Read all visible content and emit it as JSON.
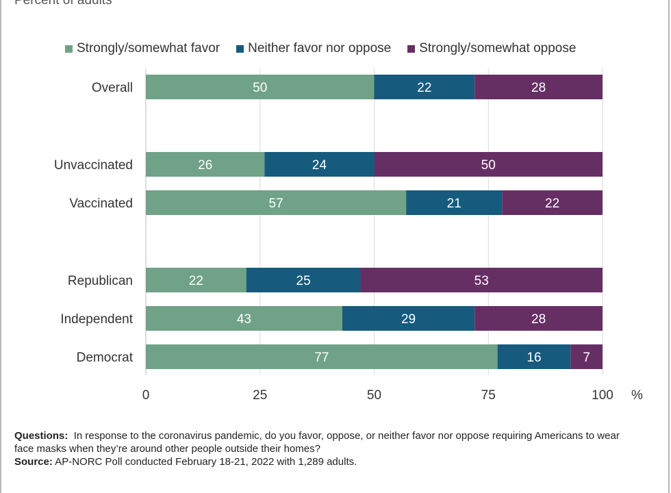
{
  "subtitle": "Percent of adults",
  "chart_data": {
    "type": "bar",
    "orientation": "horizontal",
    "stacked": true,
    "categories": [
      "Overall",
      "Unvaccinated",
      "Vaccinated",
      "Republican",
      "Independent",
      "Democrat"
    ],
    "series": [
      {
        "name": "Strongly/somewhat favor",
        "color": "#6fa287",
        "values": [
          50,
          26,
          57,
          22,
          43,
          77
        ]
      },
      {
        "name": "Neither favor nor oppose",
        "color": "#165a7e",
        "values": [
          22,
          24,
          21,
          25,
          29,
          16
        ]
      },
      {
        "name": "Strongly/somewhat oppose",
        "color": "#662f64",
        "values": [
          28,
          50,
          22,
          53,
          28,
          7
        ]
      }
    ],
    "xlim": [
      0,
      100
    ],
    "xticks": [
      "0",
      "25",
      "50",
      "75",
      "100"
    ],
    "xunit": "%",
    "grid": true,
    "legend_position": "top"
  },
  "notes": {
    "questions_label": "Questions:",
    "questions_text": "In response to the coronavirus pandemic, do you favor, oppose, or neither favor nor oppose requiring Americans to wear face masks when they’re around other people outside their homes?",
    "source_label": "Source:",
    "source_text": "AP-NORC Poll conducted February 18-21, 2022 with 1,289 adults."
  }
}
